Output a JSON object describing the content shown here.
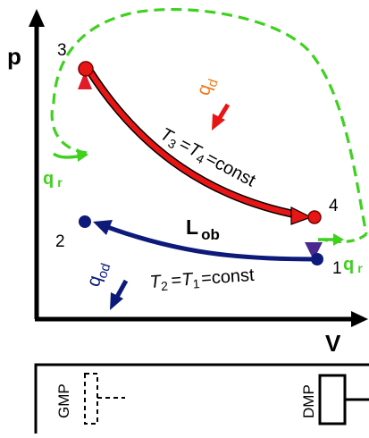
{
  "axes": {
    "y_label": "p",
    "x_label": "V"
  },
  "points": {
    "p1": "1",
    "p2": "2",
    "p3": "3",
    "p4": "4"
  },
  "heat": {
    "q_d": {
      "main": "q",
      "sub": "d"
    },
    "q_od": {
      "main": "q",
      "sub": "od"
    },
    "q_r_left": {
      "main": "q",
      "sub": "r"
    },
    "q_r_right": {
      "main": "q",
      "sub": "r"
    }
  },
  "work": {
    "main": "L",
    "sub": "ob"
  },
  "isotherm_hot": {
    "t_a": "T",
    "sub_a": "3",
    "eq1": "=",
    "t_b": "T",
    "sub_b": "4",
    "tail": "=const"
  },
  "isotherm_cold": {
    "t_a": "T",
    "sub_a": "2",
    "eq1": "=",
    "t_b": "T",
    "sub_b": "1",
    "tail": "=const"
  },
  "machine": {
    "gmp_label": "GMP",
    "dmp_label": "DMP"
  },
  "colors": {
    "hot": "#e81515",
    "cold": "#0d1a7a",
    "regen": "#3fd11f",
    "orange": "#f07a1c",
    "purple": "#4b2a8f"
  }
}
